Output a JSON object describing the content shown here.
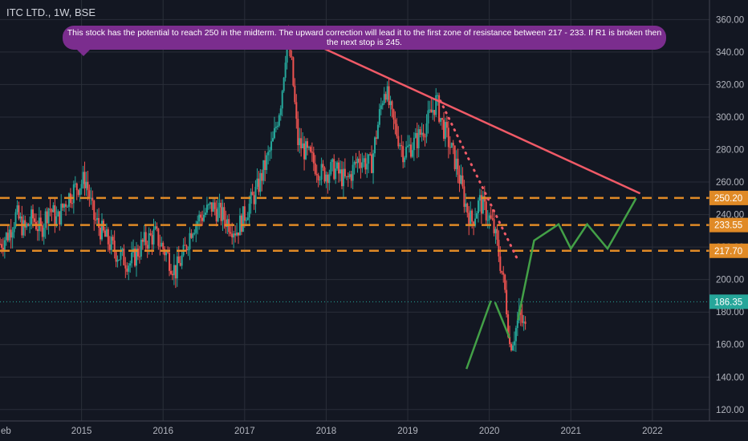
{
  "header": {
    "symbol": "ITC LTD., 1W, BSE"
  },
  "annotation": {
    "text": "This stock has the potential to reach 250  in the midterm. The upward correction will lead it to the first zone of resistance between 217 - 233. If R1 is broken then the next stop is 245."
  },
  "colors": {
    "background": "#131722",
    "grid": "#2a2e39",
    "up": "#26a69a",
    "down": "#ef5350",
    "trendline": "#f05a67",
    "level": "#e08a26",
    "projection": "#43a047",
    "price_line": "#26a69a",
    "axis_text": "#b2b5be"
  },
  "chart_data": {
    "type": "candlestick",
    "y_axis": {
      "min": 113,
      "max": 372,
      "ticks": [
        120,
        140,
        160,
        180,
        200,
        220,
        240,
        260,
        280,
        300,
        320,
        340,
        360
      ],
      "tick_labels": [
        "120.00",
        "140.00",
        "160.00",
        "180.00",
        "200.00",
        "220.00",
        "240.00",
        "260.00",
        "280.00",
        "300.00",
        "320.00",
        "340.00",
        "360.00"
      ]
    },
    "x_axis": {
      "min": 2014.0,
      "max": 2022.7,
      "ticks": [
        2015,
        2016,
        2017,
        2018,
        2019,
        2020,
        2021,
        2022
      ],
      "tick_labels": [
        "2015",
        "2016",
        "2017",
        "2018",
        "2019",
        "2020",
        "2021",
        "2022"
      ],
      "left_edge_label": "eb"
    },
    "price_path": [
      [
        2014.0,
        222
      ],
      [
        2014.1,
        228
      ],
      [
        2014.2,
        240
      ],
      [
        2014.3,
        230
      ],
      [
        2014.4,
        238
      ],
      [
        2014.5,
        230
      ],
      [
        2014.6,
        245
      ],
      [
        2014.7,
        236
      ],
      [
        2014.8,
        248
      ],
      [
        2014.9,
        255
      ],
      [
        2015.05,
        262
      ],
      [
        2015.15,
        238
      ],
      [
        2015.3,
        225
      ],
      [
        2015.45,
        215
      ],
      [
        2015.6,
        210
      ],
      [
        2015.75,
        222
      ],
      [
        2015.9,
        228
      ],
      [
        2016.05,
        215
      ],
      [
        2016.15,
        205
      ],
      [
        2016.25,
        215
      ],
      [
        2016.35,
        232
      ],
      [
        2016.45,
        238
      ],
      [
        2016.6,
        245
      ],
      [
        2016.75,
        238
      ],
      [
        2016.9,
        230
      ],
      [
        2017.05,
        245
      ],
      [
        2017.15,
        255
      ],
      [
        2017.25,
        270
      ],
      [
        2017.35,
        285
      ],
      [
        2017.45,
        312
      ],
      [
        2017.52,
        350
      ],
      [
        2017.58,
        330
      ],
      [
        2017.65,
        285
      ],
      [
        2017.8,
        275
      ],
      [
        2017.95,
        265
      ],
      [
        2018.1,
        268
      ],
      [
        2018.25,
        260
      ],
      [
        2018.4,
        275
      ],
      [
        2018.55,
        270
      ],
      [
        2018.65,
        300
      ],
      [
        2018.72,
        320
      ],
      [
        2018.8,
        300
      ],
      [
        2018.95,
        278
      ],
      [
        2019.1,
        285
      ],
      [
        2019.25,
        298
      ],
      [
        2019.35,
        310
      ],
      [
        2019.42,
        296
      ],
      [
        2019.5,
        285
      ],
      [
        2019.6,
        270
      ],
      [
        2019.7,
        248
      ],
      [
        2019.78,
        235
      ],
      [
        2019.88,
        248
      ],
      [
        2019.98,
        240
      ],
      [
        2020.05,
        232
      ],
      [
        2020.12,
        215
      ],
      [
        2020.2,
        190
      ],
      [
        2020.25,
        160
      ],
      [
        2020.3,
        165
      ],
      [
        2020.37,
        178
      ],
      [
        2020.45,
        168
      ]
    ],
    "horizontal_levels": [
      {
        "value": 250.2,
        "label": "250.20"
      },
      {
        "value": 233.55,
        "label": "233.55"
      },
      {
        "value": 217.7,
        "label": "217.70"
      }
    ],
    "current_price": {
      "value": 186.35,
      "label": "186.35"
    },
    "trendline": {
      "from": [
        2017.5,
        353
      ],
      "to": [
        2021.85,
        253
      ]
    },
    "dotted_trendline": {
      "from": [
        2019.4,
        310
      ],
      "to": [
        2020.35,
        212
      ]
    },
    "projection_path": [
      [
        2020.35,
        175
      ],
      [
        2020.55,
        224
      ],
      [
        2020.85,
        234
      ],
      [
        2021.0,
        219
      ],
      [
        2021.2,
        234
      ],
      [
        2021.45,
        219
      ],
      [
        2021.8,
        250
      ]
    ],
    "projection_strokes": [
      {
        "from": [
          2019.72,
          145
        ],
        "to": [
          2020.02,
          187
        ]
      },
      {
        "from": [
          2020.07,
          186
        ],
        "to": [
          2020.25,
          164
        ]
      }
    ]
  }
}
